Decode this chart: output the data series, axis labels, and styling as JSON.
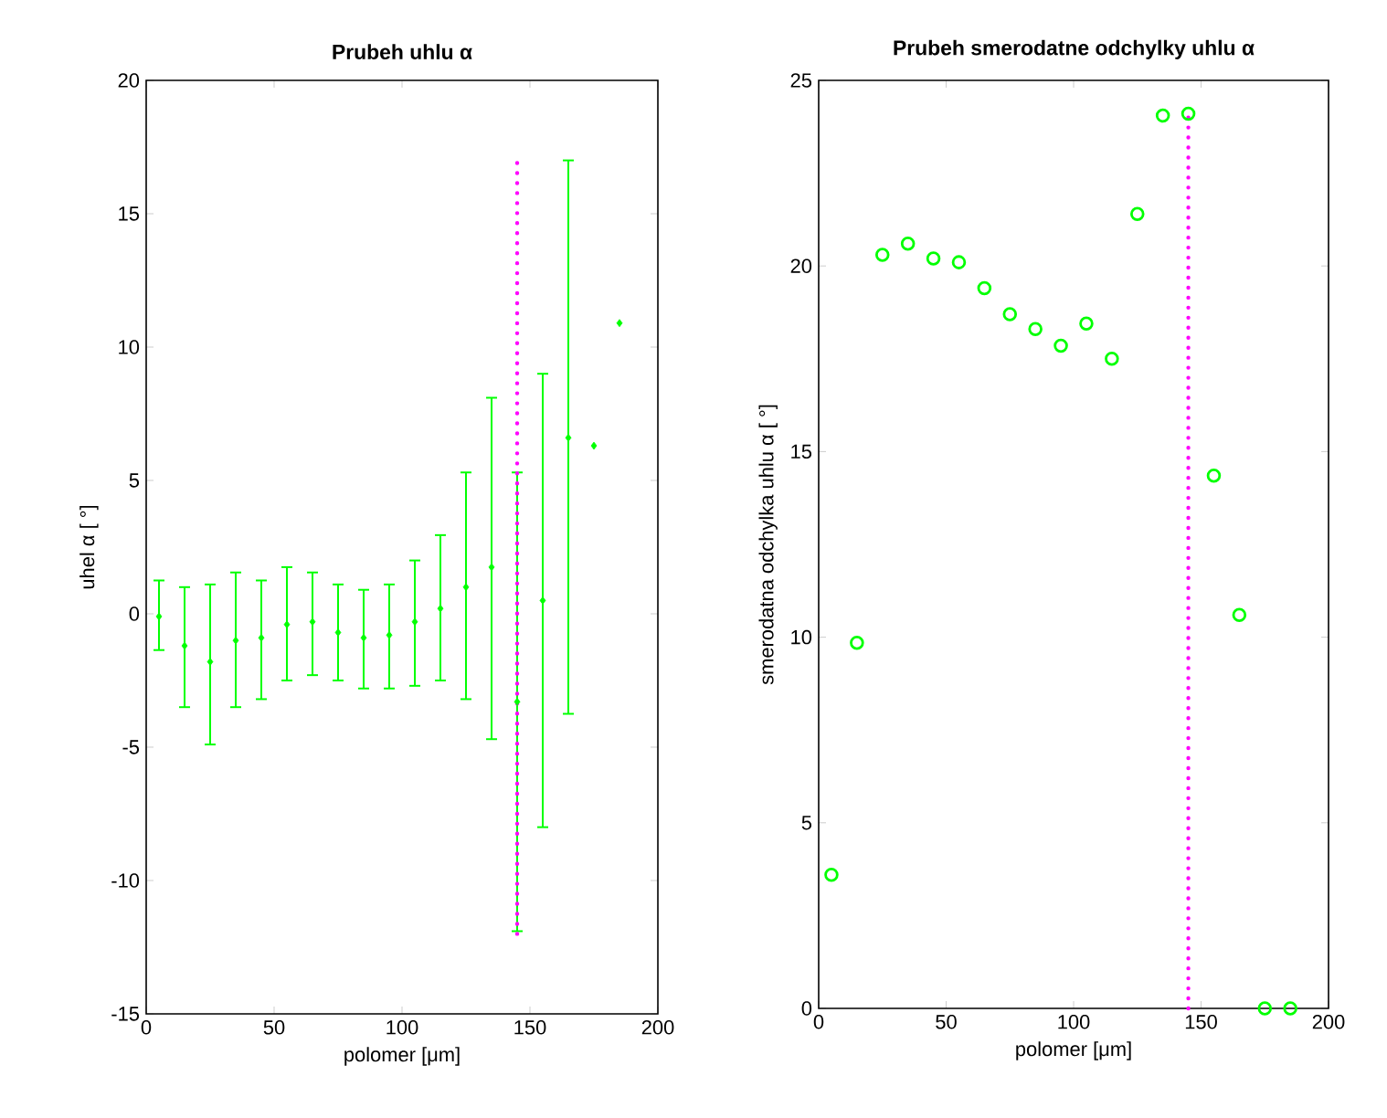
{
  "chart_data": [
    {
      "type": "scatter",
      "title": "Prubeh uhlu α",
      "xlabel": "polomer [μm]",
      "ylabel": "uhel α [ °]",
      "xlim": [
        0,
        200
      ],
      "ylim": [
        -15,
        20
      ],
      "xticks": [
        0,
        50,
        100,
        150,
        200
      ],
      "yticks": [
        -15,
        -10,
        -5,
        0,
        5,
        10,
        15,
        20
      ],
      "grid": false,
      "series": [
        {
          "color": "#00ff00",
          "marker": "diamond",
          "x": [
            5,
            15,
            25,
            35,
            45,
            55,
            65,
            75,
            85,
            95,
            105,
            115,
            125,
            135,
            145,
            155,
            165,
            175,
            185
          ],
          "values": [
            -0.1,
            -1.2,
            -1.8,
            -1.0,
            -0.9,
            -0.4,
            -0.3,
            -0.7,
            -0.9,
            -0.8,
            -0.3,
            0.2,
            1.0,
            1.75,
            -3.3,
            0.5,
            6.6,
            6.3,
            10.9
          ],
          "errors": [
            [
              -1.36,
              1.25
            ],
            [
              -3.5,
              1.0
            ],
            [
              -4.9,
              1.1
            ],
            [
              -3.5,
              1.55
            ],
            [
              -3.2,
              1.25
            ],
            [
              -2.5,
              1.75
            ],
            [
              -2.3,
              1.55
            ],
            [
              -2.5,
              1.1
            ],
            [
              -2.8,
              0.9
            ],
            [
              -2.8,
              1.1
            ],
            [
              -2.7,
              2.0
            ],
            [
              -2.5,
              2.95
            ],
            [
              -3.2,
              5.3
            ],
            [
              -4.7,
              8.1
            ],
            [
              -11.9,
              5.3
            ],
            [
              -8.0,
              9.0
            ],
            [
              -3.75,
              17.0
            ],
            null,
            null
          ]
        },
        {
          "type": "line",
          "line_style": "dotted",
          "color": "#ff00ff",
          "x": [
            145,
            145
          ],
          "values": [
            -12,
            17
          ]
        }
      ]
    },
    {
      "type": "scatter",
      "title": "Prubeh smerodatne odchylky uhlu α",
      "xlabel": "polomer [μm]",
      "ylabel": "smerodatna odchylka uhlu α [ °]",
      "xlim": [
        0,
        200
      ],
      "ylim": [
        0,
        25
      ],
      "xticks": [
        0,
        50,
        100,
        150,
        200
      ],
      "yticks": [
        0,
        5,
        10,
        15,
        20,
        25
      ],
      "grid": false,
      "series": [
        {
          "color": "#00ff00",
          "marker": "circle",
          "x": [
            5,
            15,
            25,
            35,
            45,
            55,
            65,
            75,
            85,
            95,
            105,
            115,
            125,
            135,
            145,
            155,
            165,
            175,
            185
          ],
          "values": [
            3.6,
            9.85,
            20.3,
            20.6,
            20.2,
            20.1,
            19.4,
            18.7,
            18.3,
            17.85,
            18.45,
            17.5,
            21.4,
            24.05,
            24.1,
            14.35,
            10.6,
            0,
            0
          ]
        },
        {
          "type": "line",
          "line_style": "dotted",
          "color": "#ff00ff",
          "x": [
            145,
            145
          ],
          "values": [
            0,
            24
          ]
        }
      ]
    }
  ]
}
